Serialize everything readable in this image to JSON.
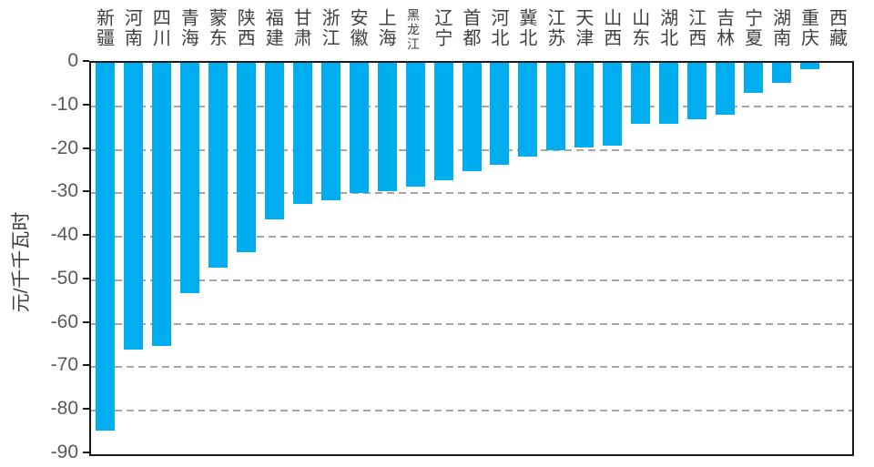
{
  "chart_data": {
    "type": "bar",
    "title": "",
    "xlabel": "",
    "ylabel": "元/千千瓦时",
    "categories": [
      "新疆",
      "河南",
      "四川",
      "青海",
      "蒙东",
      "陕西",
      "福建",
      "甘肃",
      "浙江",
      "安徽",
      "上海",
      "黑龙江",
      "辽宁",
      "首都",
      "河北",
      "冀北",
      "江苏",
      "天津",
      "山西",
      "山东",
      "湖北",
      "江西",
      "吉林",
      "宁夏",
      "湖南",
      "重庆",
      "西藏"
    ],
    "values": [
      -84.5,
      -66,
      -65,
      -53,
      -47,
      -43.5,
      -36,
      -32.5,
      -31.5,
      -30,
      -29.5,
      -28.5,
      -27,
      -25,
      -23.5,
      -21.5,
      -20,
      -19.5,
      -19,
      -14,
      -14,
      -13,
      -12,
      -7,
      -4.5,
      -1.5,
      0
    ],
    "ylim": [
      -90,
      0
    ],
    "yticks": [
      0,
      -10,
      -20,
      -30,
      -40,
      -50,
      -60,
      -70,
      -80,
      -90
    ],
    "grid": "horizontal-dashed",
    "legend": "none",
    "x_label_position": "top",
    "x_label_orientation": "vertical-upright",
    "colors": {
      "bar": "#00AEEF",
      "gridline": "#A6A6A6",
      "axis_border": "#1A1A1A",
      "y_tick_text": "#595959",
      "x_label_text": "#404040",
      "background": "#FFFFFF"
    }
  }
}
